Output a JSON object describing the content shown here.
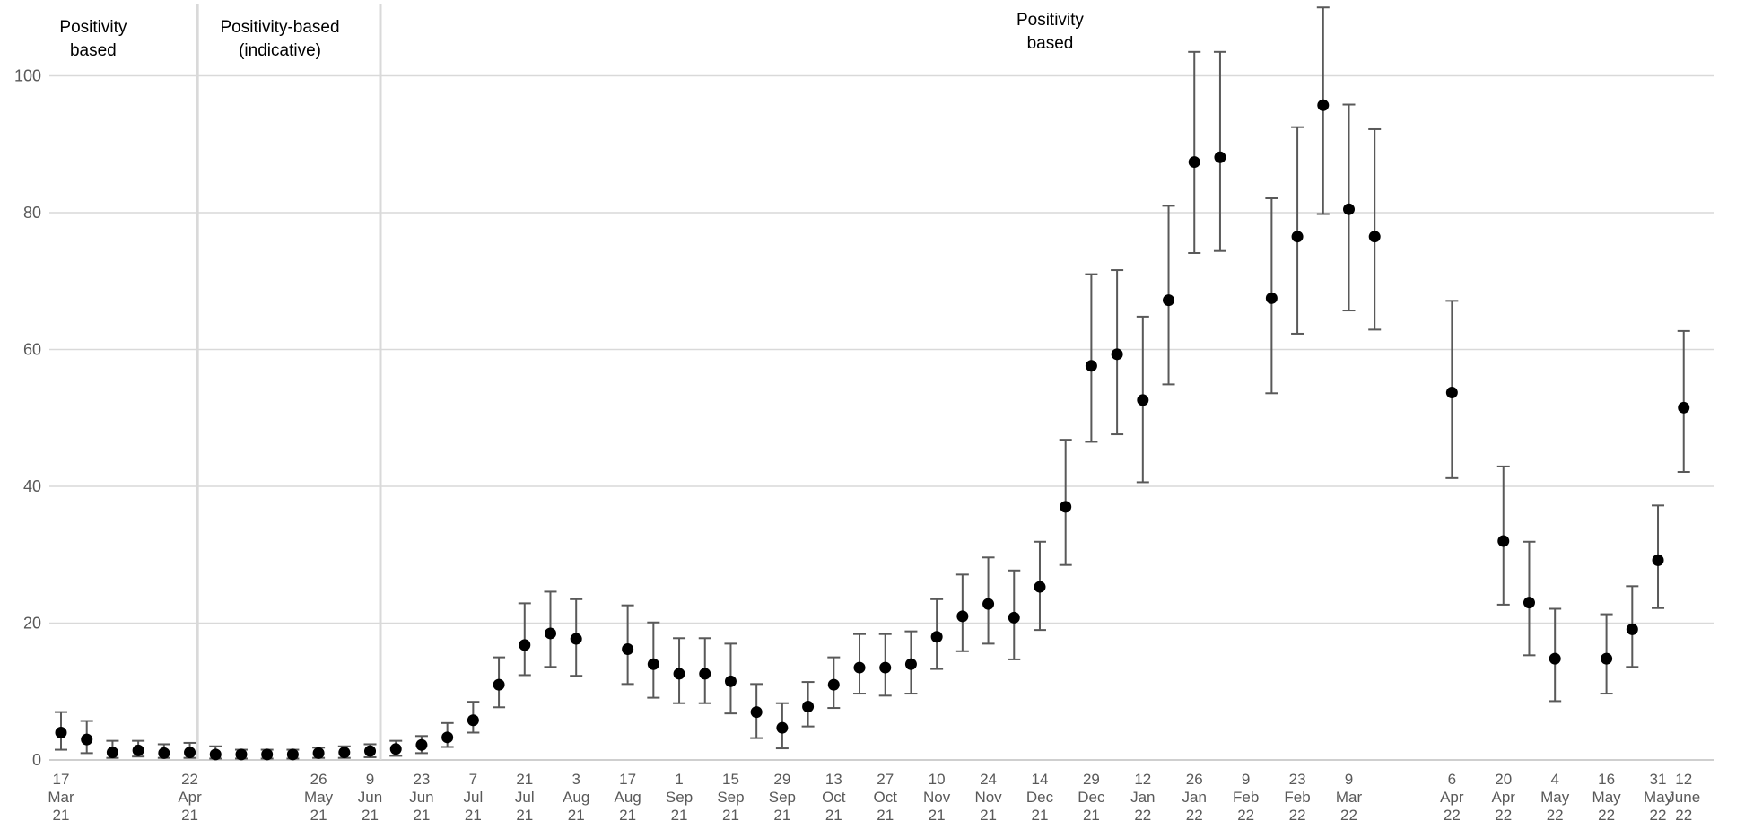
{
  "chart_data": {
    "type": "scatter",
    "title": "",
    "xlabel": "",
    "ylabel": "",
    "ylim": [
      0,
      108
    ],
    "yticks": [
      0,
      20,
      40,
      60,
      80,
      100
    ],
    "grid": true,
    "legend": "none",
    "colors": {
      "point": "#000000",
      "error_bar": "#595959",
      "grid": "#d9d9d9",
      "divider": "#d9d9d9"
    },
    "region_labels": [
      {
        "lines": [
          "Positivity",
          "based"
        ],
        "at_point": 1.25
      },
      {
        "lines": [
          "Positivity-based",
          "(indicative)"
        ],
        "at_point": 8.5
      },
      {
        "lines": [
          "Positivity",
          "based"
        ],
        "at_point": 38.4
      }
    ],
    "dividers_at_point": [
      5.3,
      12.4
    ],
    "x_tick_labels": [
      {
        "at_point": 0,
        "lines": [
          "17",
          "Mar",
          "21"
        ]
      },
      {
        "at_point": 5,
        "lines": [
          "22",
          "Apr",
          "21"
        ]
      },
      {
        "at_point": 10,
        "lines": [
          "26",
          "May",
          "21"
        ]
      },
      {
        "at_point": 12,
        "lines": [
          "9",
          "Jun",
          "21"
        ]
      },
      {
        "at_point": 14,
        "lines": [
          "23",
          "Jun",
          "21"
        ]
      },
      {
        "at_point": 16,
        "lines": [
          "7",
          "Jul",
          "21"
        ]
      },
      {
        "at_point": 18,
        "lines": [
          "21",
          "Jul",
          "21"
        ]
      },
      {
        "at_point": 20,
        "lines": [
          "3",
          "Aug",
          "21"
        ]
      },
      {
        "at_point": 22,
        "lines": [
          "17",
          "Aug",
          "21"
        ]
      },
      {
        "at_point": 24,
        "lines": [
          "1",
          "Sep",
          "21"
        ]
      },
      {
        "at_point": 26,
        "lines": [
          "15",
          "Sep",
          "21"
        ]
      },
      {
        "at_point": 28,
        "lines": [
          "29",
          "Sep",
          "21"
        ]
      },
      {
        "at_point": 30,
        "lines": [
          "13",
          "Oct",
          "21"
        ]
      },
      {
        "at_point": 32,
        "lines": [
          "27",
          "Oct",
          "21"
        ]
      },
      {
        "at_point": 34,
        "lines": [
          "10",
          "Nov",
          "21"
        ]
      },
      {
        "at_point": 36,
        "lines": [
          "24",
          "Nov",
          "21"
        ]
      },
      {
        "at_point": 38,
        "lines": [
          "14",
          "Dec",
          "21"
        ]
      },
      {
        "at_point": 40,
        "lines": [
          "29",
          "Dec",
          "21"
        ]
      },
      {
        "at_point": 42,
        "lines": [
          "12",
          "Jan",
          "22"
        ]
      },
      {
        "at_point": 44,
        "lines": [
          "26",
          "Jan",
          "22"
        ]
      },
      {
        "at_point": 46,
        "lines": [
          "9",
          "Feb",
          "22"
        ]
      },
      {
        "at_point": 48,
        "lines": [
          "23",
          "Feb",
          "22"
        ]
      },
      {
        "at_point": 50,
        "lines": [
          "9",
          "Mar",
          "22"
        ]
      },
      {
        "at_point": 54,
        "lines": [
          "6",
          "Apr",
          "22"
        ]
      },
      {
        "at_point": 56,
        "lines": [
          "20",
          "Apr",
          "22"
        ]
      },
      {
        "at_point": 58,
        "lines": [
          "4",
          "May",
          "22"
        ]
      },
      {
        "at_point": 60,
        "lines": [
          "16",
          "May",
          "22"
        ]
      },
      {
        "at_point": 62,
        "lines": [
          "31",
          "May",
          "22"
        ]
      },
      {
        "at_point": 63,
        "lines": [
          "12",
          "June",
          "22"
        ]
      }
    ],
    "points": [
      {
        "x": 0,
        "y": 4.0,
        "lo": 1.5,
        "hi": 7.0
      },
      {
        "x": 1,
        "y": 3.0,
        "lo": 1.0,
        "hi": 5.7
      },
      {
        "x": 2,
        "y": 1.1,
        "lo": 0.3,
        "hi": 2.8
      },
      {
        "x": 3,
        "y": 1.4,
        "lo": 0.5,
        "hi": 2.8
      },
      {
        "x": 4,
        "y": 1.0,
        "lo": 0.3,
        "hi": 2.3
      },
      {
        "x": 5,
        "y": 1.1,
        "lo": 0.3,
        "hi": 2.5
      },
      {
        "x": 6,
        "y": 0.8,
        "lo": 0.2,
        "hi": 2.0
      },
      {
        "x": 7,
        "y": 0.8,
        "lo": 0.2,
        "hi": 1.5
      },
      {
        "x": 8,
        "y": 0.8,
        "lo": 0.2,
        "hi": 1.5
      },
      {
        "x": 9,
        "y": 0.8,
        "lo": 0.2,
        "hi": 1.5
      },
      {
        "x": 10,
        "y": 1.0,
        "lo": 0.3,
        "hi": 1.8
      },
      {
        "x": 11,
        "y": 1.1,
        "lo": 0.3,
        "hi": 2.0
      },
      {
        "x": 12,
        "y": 1.3,
        "lo": 0.4,
        "hi": 2.3
      },
      {
        "x": 13,
        "y": 1.6,
        "lo": 0.6,
        "hi": 2.8
      },
      {
        "x": 14,
        "y": 2.2,
        "lo": 1.0,
        "hi": 3.5
      },
      {
        "x": 15,
        "y": 3.3,
        "lo": 1.9,
        "hi": 5.4
      },
      {
        "x": 16,
        "y": 5.8,
        "lo": 4.0,
        "hi": 8.5
      },
      {
        "x": 17,
        "y": 11.0,
        "lo": 7.7,
        "hi": 15.0
      },
      {
        "x": 18,
        "y": 16.8,
        "lo": 12.4,
        "hi": 22.9
      },
      {
        "x": 19,
        "y": 18.5,
        "lo": 13.6,
        "hi": 24.6
      },
      {
        "x": 20,
        "y": 17.7,
        "lo": 12.3,
        "hi": 23.5
      },
      {
        "x": 22,
        "y": 16.2,
        "lo": 11.1,
        "hi": 22.6
      },
      {
        "x": 23,
        "y": 14.0,
        "lo": 9.1,
        "hi": 20.1
      },
      {
        "x": 24,
        "y": 12.6,
        "lo": 8.3,
        "hi": 17.8
      },
      {
        "x": 25,
        "y": 12.6,
        "lo": 8.3,
        "hi": 17.8
      },
      {
        "x": 26,
        "y": 11.5,
        "lo": 6.8,
        "hi": 17.0
      },
      {
        "x": 27,
        "y": 7.0,
        "lo": 3.2,
        "hi": 11.1
      },
      {
        "x": 28,
        "y": 4.7,
        "lo": 1.7,
        "hi": 8.3
      },
      {
        "x": 29,
        "y": 7.8,
        "lo": 4.9,
        "hi": 11.4
      },
      {
        "x": 30,
        "y": 11.0,
        "lo": 7.6,
        "hi": 15.0
      },
      {
        "x": 31,
        "y": 13.5,
        "lo": 9.7,
        "hi": 18.4
      },
      {
        "x": 32,
        "y": 13.5,
        "lo": 9.4,
        "hi": 18.4
      },
      {
        "x": 33,
        "y": 14.0,
        "lo": 9.7,
        "hi": 18.8
      },
      {
        "x": 34,
        "y": 18.0,
        "lo": 13.3,
        "hi": 23.5
      },
      {
        "x": 35,
        "y": 21.0,
        "lo": 15.9,
        "hi": 27.1
      },
      {
        "x": 36,
        "y": 22.8,
        "lo": 17.0,
        "hi": 29.6
      },
      {
        "x": 37,
        "y": 20.8,
        "lo": 14.7,
        "hi": 27.7
      },
      {
        "x": 38,
        "y": 25.3,
        "lo": 19.0,
        "hi": 31.9
      },
      {
        "x": 39,
        "y": 37.0,
        "lo": 28.5,
        "hi": 46.8
      },
      {
        "x": 40,
        "y": 57.6,
        "lo": 46.5,
        "hi": 71.0
      },
      {
        "x": 41,
        "y": 59.3,
        "lo": 47.6,
        "hi": 71.6
      },
      {
        "x": 42,
        "y": 52.6,
        "lo": 40.6,
        "hi": 64.8
      },
      {
        "x": 43,
        "y": 67.2,
        "lo": 54.9,
        "hi": 81.0
      },
      {
        "x": 44,
        "y": 87.4,
        "lo": 74.1,
        "hi": 103.5
      },
      {
        "x": 45,
        "y": 88.1,
        "lo": 74.4,
        "hi": 103.5
      },
      {
        "x": 47,
        "y": 67.5,
        "lo": 53.6,
        "hi": 82.1
      },
      {
        "x": 48,
        "y": 76.5,
        "lo": 62.3,
        "hi": 92.5
      },
      {
        "x": 49,
        "y": 95.7,
        "lo": 79.8,
        "hi": 110.0
      },
      {
        "x": 50,
        "y": 80.5,
        "lo": 65.7,
        "hi": 95.8
      },
      {
        "x": 51,
        "y": 76.5,
        "lo": 62.9,
        "hi": 92.2
      },
      {
        "x": 54,
        "y": 53.7,
        "lo": 41.2,
        "hi": 67.1
      },
      {
        "x": 56,
        "y": 32.0,
        "lo": 22.7,
        "hi": 42.9
      },
      {
        "x": 57,
        "y": 23.0,
        "lo": 15.3,
        "hi": 31.9
      },
      {
        "x": 58,
        "y": 14.8,
        "lo": 8.6,
        "hi": 22.1
      },
      {
        "x": 60,
        "y": 14.8,
        "lo": 9.7,
        "hi": 21.3
      },
      {
        "x": 61,
        "y": 19.1,
        "lo": 13.6,
        "hi": 25.4
      },
      {
        "x": 62,
        "y": 29.2,
        "lo": 22.2,
        "hi": 37.2
      },
      {
        "x": 63,
        "y": 51.5,
        "lo": 42.1,
        "hi": 62.7
      }
    ]
  }
}
